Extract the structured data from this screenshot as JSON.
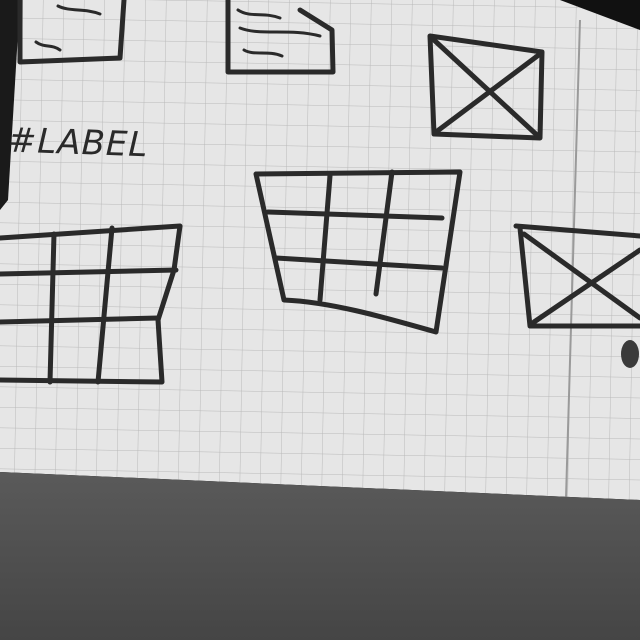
{
  "sketch": {
    "label_text": "#LABEL"
  },
  "colors": {
    "paper": "#e6e6e6",
    "grid_line": "#b9b9b9",
    "ink": "#2a2a2a",
    "table_surface": "#4e4e4e",
    "background": "#000000"
  }
}
